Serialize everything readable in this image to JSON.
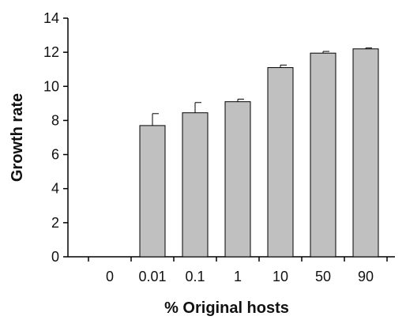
{
  "chart_data": {
    "type": "bar",
    "categories": [
      "0",
      "0.01",
      "0.1",
      "1",
      "10",
      "50",
      "90"
    ],
    "values": [
      0,
      7.7,
      8.45,
      9.1,
      11.1,
      11.95,
      12.2
    ],
    "errors": [
      0,
      0.7,
      0.6,
      0.15,
      0.15,
      0.1,
      0.05
    ],
    "title": "",
    "xlabel": "% Original hosts",
    "ylabel": "Growth rate",
    "ylim": [
      0,
      14
    ],
    "yticks": [
      "0",
      "2",
      "4",
      "6",
      "8",
      "10",
      "12",
      "14"
    ],
    "grid": false,
    "legend": "none",
    "colors": {
      "bar_fill": "#c0c0c0",
      "bar_stroke": "#000000",
      "axis": "#000000"
    }
  }
}
